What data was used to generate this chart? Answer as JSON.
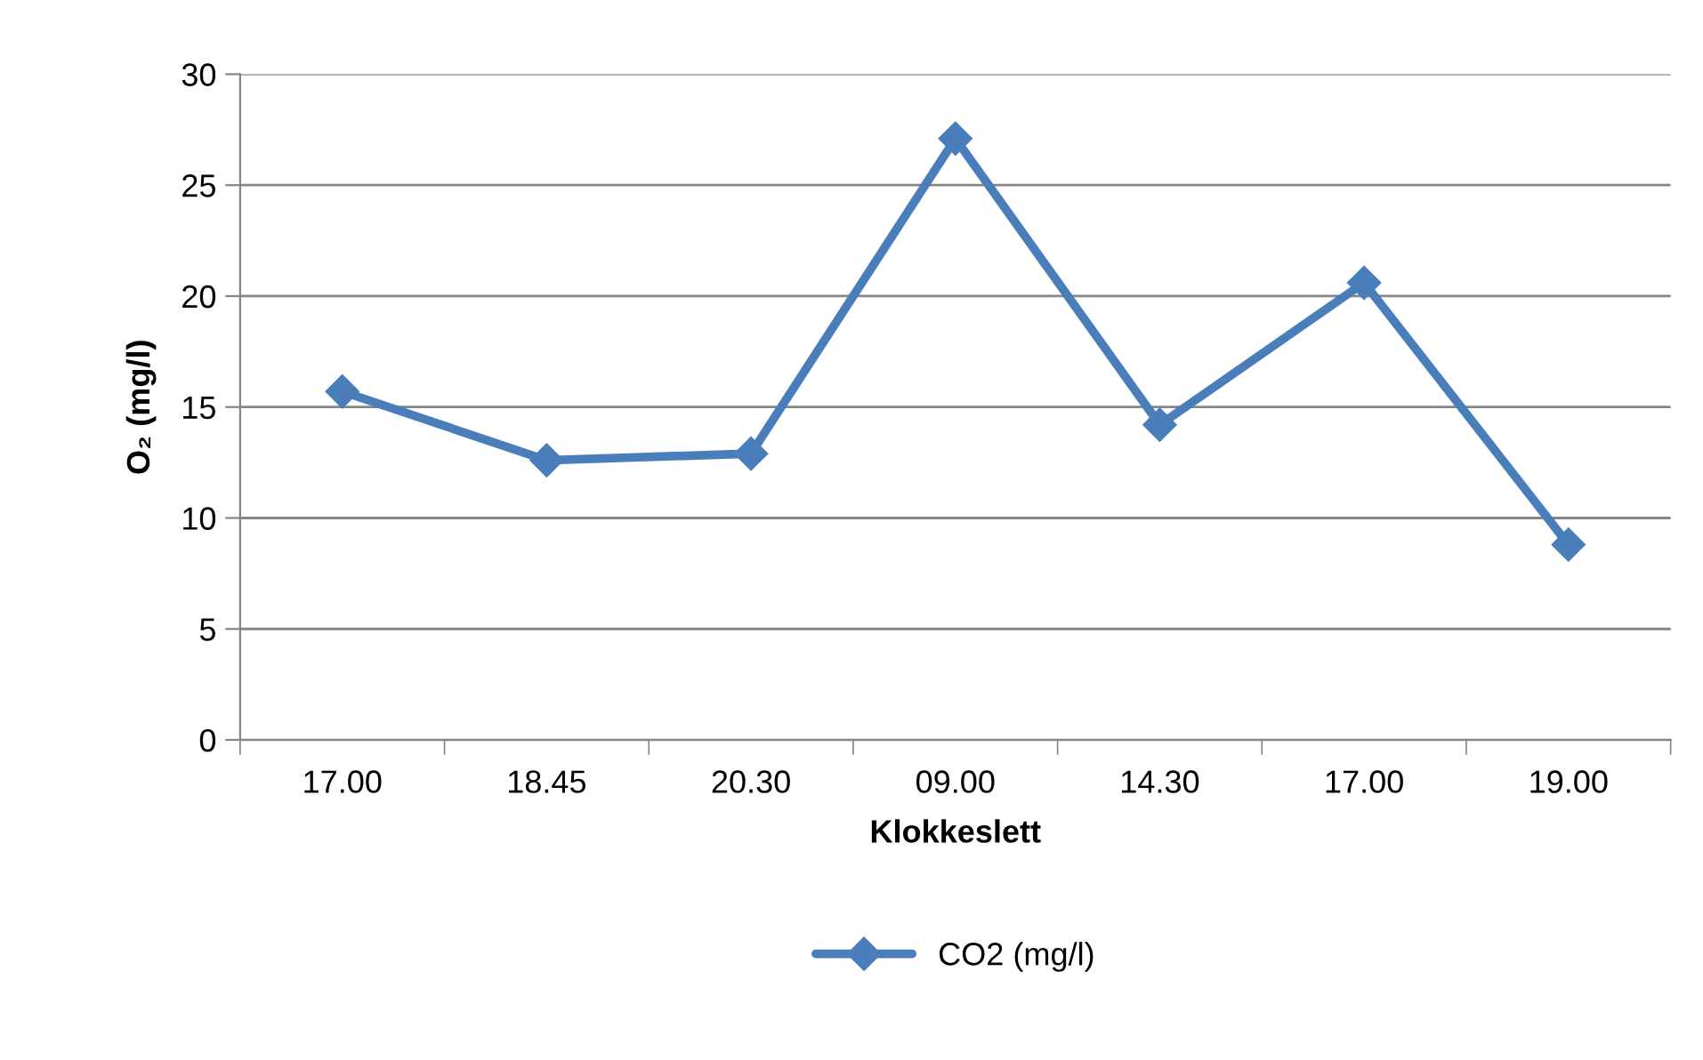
{
  "chart_data": {
    "type": "line",
    "xlabel": "Klokkeslett",
    "ylabel": "O₂ (mg/l)",
    "categories": [
      "17.00",
      "18.45",
      "20.30",
      "09.00",
      "14.30",
      "17.00",
      "19.00"
    ],
    "series": [
      {
        "name": "CO2 (mg/l)",
        "color": "#4a7ebb",
        "values": [
          15.7,
          12.6,
          12.9,
          27.1,
          14.2,
          20.6,
          8.8
        ]
      }
    ],
    "ylim": [
      0,
      30
    ],
    "yticks": [
      0,
      5,
      10,
      15,
      20,
      25,
      30
    ],
    "grid": "y",
    "legend": "bottom",
    "marker": "diamond",
    "line_style": "solid"
  }
}
